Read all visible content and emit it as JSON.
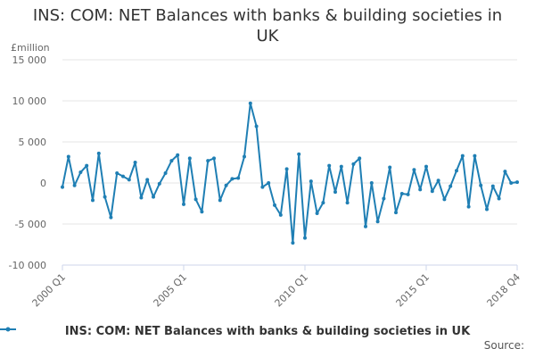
{
  "chart_data": {
    "type": "line",
    "title": "INS: COM: NET Balances with banks & building societies in UK",
    "unit_label": "£million",
    "ylim": [
      -10000,
      15000
    ],
    "y_ticks": [
      15000,
      10000,
      5000,
      0,
      -5000,
      -10000
    ],
    "y_tick_labels": [
      "15 000",
      "10 000",
      "5 000",
      "0",
      "-5 000",
      "-10 000"
    ],
    "x_ticks": [
      0,
      20,
      40,
      60,
      75
    ],
    "x_tick_labels": [
      "2000 Q1",
      "2005 Q1",
      "2010 Q1",
      "2015 Q1",
      "2018 Q4"
    ],
    "grid": "horizontal",
    "legend_position": "bottom",
    "series": [
      {
        "name": "INS: COM: NET Balances with banks & building societies in UK",
        "color": "#1f7fb4",
        "x": [
          "2000 Q1",
          "2000 Q2",
          "2000 Q3",
          "2000 Q4",
          "2001 Q1",
          "2001 Q2",
          "2001 Q3",
          "2001 Q4",
          "2002 Q1",
          "2002 Q2",
          "2002 Q3",
          "2002 Q4",
          "2003 Q1",
          "2003 Q2",
          "2003 Q3",
          "2003 Q4",
          "2004 Q1",
          "2004 Q2",
          "2004 Q3",
          "2004 Q4",
          "2005 Q1",
          "2005 Q2",
          "2005 Q3",
          "2005 Q4",
          "2006 Q1",
          "2006 Q2",
          "2006 Q3",
          "2006 Q4",
          "2007 Q1",
          "2007 Q2",
          "2007 Q3",
          "2007 Q4",
          "2008 Q1",
          "2008 Q2",
          "2008 Q3",
          "2008 Q4",
          "2009 Q1",
          "2009 Q2",
          "2009 Q3",
          "2009 Q4",
          "2010 Q1",
          "2010 Q2",
          "2010 Q3",
          "2010 Q4",
          "2011 Q1",
          "2011 Q2",
          "2011 Q3",
          "2011 Q4",
          "2012 Q1",
          "2012 Q2",
          "2012 Q3",
          "2012 Q4",
          "2013 Q1",
          "2013 Q2",
          "2013 Q3",
          "2013 Q4",
          "2014 Q1",
          "2014 Q2",
          "2014 Q3",
          "2014 Q4",
          "2015 Q1",
          "2015 Q2",
          "2015 Q3",
          "2015 Q4",
          "2016 Q1",
          "2016 Q2",
          "2016 Q3",
          "2016 Q4",
          "2017 Q1",
          "2017 Q2",
          "2017 Q3",
          "2017 Q4",
          "2018 Q1",
          "2018 Q2",
          "2018 Q3",
          "2018 Q4"
        ],
        "values": [
          -500,
          3200,
          -300,
          1300,
          2100,
          -2100,
          3600,
          -1700,
          -4200,
          1200,
          800,
          400,
          2500,
          -1800,
          400,
          -1700,
          -100,
          1200,
          2700,
          3400,
          -2600,
          3000,
          -2000,
          -3500,
          2700,
          3000,
          -2100,
          -300,
          500,
          600,
          3200,
          9700,
          6900,
          -500,
          0,
          -2700,
          -3900,
          1700,
          -7300,
          3500,
          -6700,
          200,
          -3700,
          -2400,
          2100,
          -1100,
          2000,
          -2400,
          2300,
          3000,
          -5300,
          0,
          -4700,
          -1900,
          1900,
          -3600,
          -1300,
          -1400,
          1600,
          -800,
          2000,
          -1000,
          300,
          -2000,
          -400,
          1500,
          3300,
          -2900,
          3300,
          -300,
          -3200,
          -400,
          -1900,
          1400,
          0,
          100
        ]
      }
    ]
  },
  "legend": {
    "label": "INS: COM: NET Balances with banks & building societies in UK"
  },
  "source_label": "Source:"
}
